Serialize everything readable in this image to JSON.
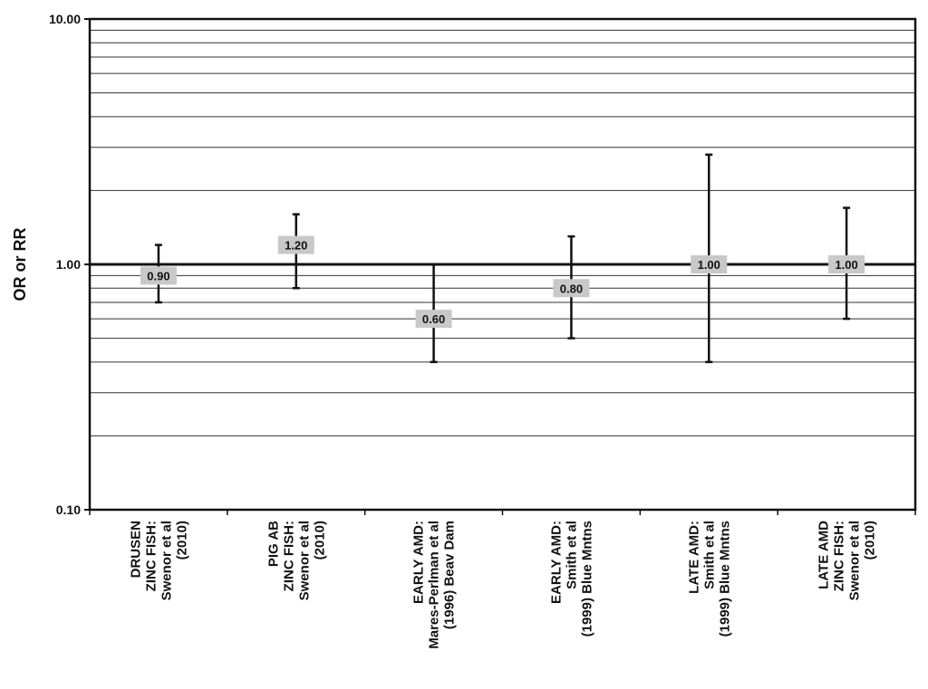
{
  "chart_data": {
    "type": "error-bar",
    "y_scale": "log",
    "ylim": [
      0.1,
      10
    ],
    "ylabel": "OR or RR",
    "y_ticks": [
      {
        "value": 0.1,
        "label": "0.10"
      },
      {
        "value": 1,
        "label": "1.00"
      },
      {
        "value": 10,
        "label": "10.00"
      }
    ],
    "grid": true,
    "reference_line": 1.0,
    "categories": [
      {
        "lines": [
          "DRUSEN",
          "ZINC FISH:",
          "Swenor et al",
          "(2010)"
        ]
      },
      {
        "lines": [
          "PIG AB",
          "ZINC FISH:",
          "Swenor et al",
          "(2010)"
        ]
      },
      {
        "lines": [
          "EARLY AMD:",
          "Mares-Perlman et al",
          "(1996) Beav Dam"
        ]
      },
      {
        "lines": [
          "EARLY AMD:",
          "Smith et al",
          "(1999) Blue Mntns"
        ]
      },
      {
        "lines": [
          "LATE AMD:",
          "Smith et al",
          "(1999) Blue Mntns"
        ]
      },
      {
        "lines": [
          "LATE AMD",
          "ZINC FISH:",
          "Swenor et al",
          "(2010)"
        ]
      }
    ],
    "points": [
      {
        "estimate": 0.9,
        "lower": 0.7,
        "upper": 1.2,
        "label": "0.90"
      },
      {
        "estimate": 1.2,
        "lower": 0.8,
        "upper": 1.6,
        "label": "1.20"
      },
      {
        "estimate": 0.6,
        "lower": 0.4,
        "upper": 1.0,
        "label": "0.60"
      },
      {
        "estimate": 0.8,
        "lower": 0.5,
        "upper": 1.3,
        "label": "0.80"
      },
      {
        "estimate": 1.0,
        "lower": 0.4,
        "upper": 2.8,
        "label": "1.00"
      },
      {
        "estimate": 1.0,
        "lower": 0.6,
        "upper": 1.7,
        "label": "1.00"
      }
    ]
  }
}
